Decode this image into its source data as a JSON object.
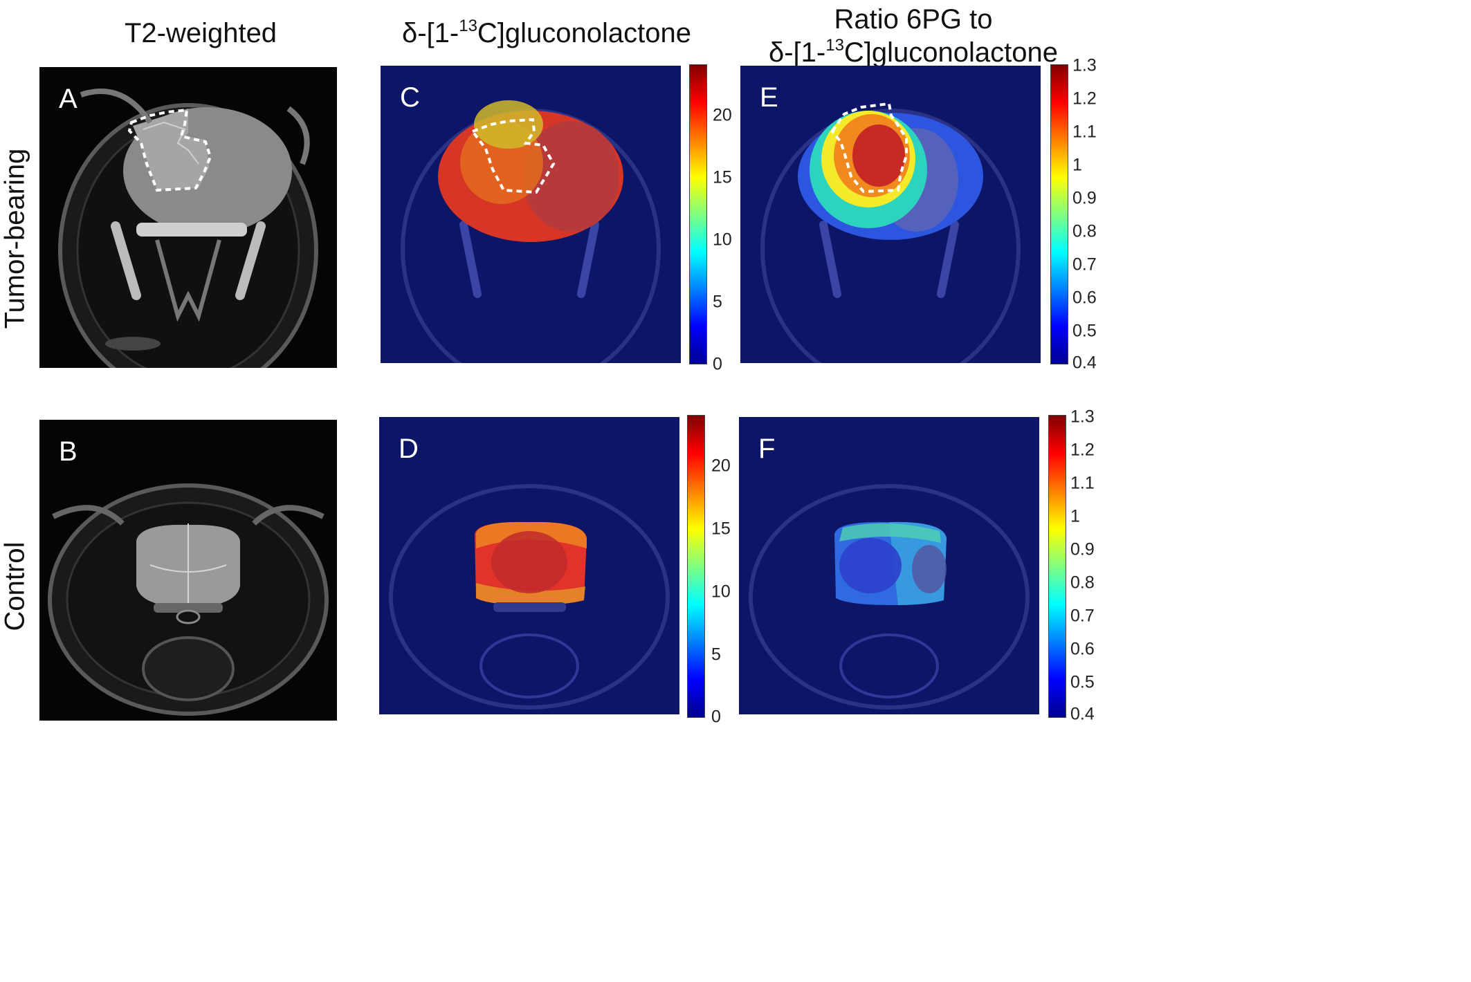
{
  "columns": {
    "t2": {
      "title": "T2-weighted"
    },
    "gluco": {
      "title_pre": "δ-[1-",
      "title_sup": "13",
      "title_post": "C]gluconolactone"
    },
    "ratio": {
      "title_line1": "Ratio 6PG to",
      "title_pre": "δ-[1-",
      "title_sup": "13",
      "title_post": "C]gluconolactone"
    }
  },
  "rows": {
    "tumor": {
      "label": "Tumor-bearing"
    },
    "control": {
      "label": "Control"
    }
  },
  "panels": {
    "A": {
      "letter": "A"
    },
    "B": {
      "letter": "B"
    },
    "C": {
      "letter": "C"
    },
    "D": {
      "letter": "D"
    },
    "E": {
      "letter": "E"
    },
    "F": {
      "letter": "F"
    }
  },
  "colorbars": {
    "gluco_ticks": [
      "20",
      "15",
      "10",
      "5",
      "0"
    ],
    "ratio_ticks": [
      "1.3",
      "1.2",
      "1.1",
      "1",
      "0.9",
      "0.8",
      "0.7",
      "0.6",
      "0.5",
      "0.4"
    ]
  },
  "colors": {
    "map_background": "#0d1566",
    "outline": "#ffffff"
  }
}
